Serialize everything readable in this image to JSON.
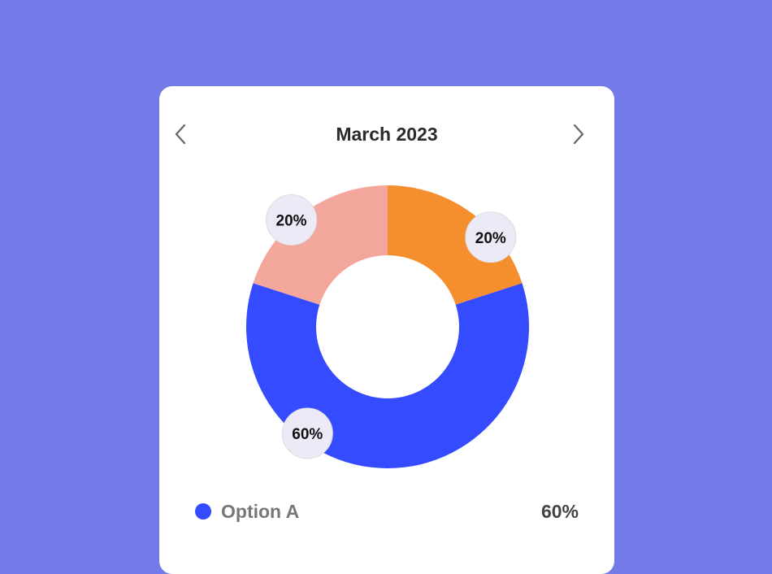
{
  "header": {
    "title": "March 2023",
    "prev_icon": "chevron-left-icon",
    "next_icon": "chevron-right-icon"
  },
  "colors": {
    "background": "#747AE8",
    "card": "#FFFFFF",
    "label_bubble": "#EBEAF6"
  },
  "chart_data": {
    "type": "pie",
    "variant": "donut",
    "slices": [
      {
        "label": "20%",
        "value": 20,
        "color": "#F58F2D"
      },
      {
        "label": "60%",
        "value": 60,
        "color": "#354BFF"
      },
      {
        "label": "20%",
        "value": 20,
        "color": "#F3A79C"
      }
    ]
  },
  "legend": [
    {
      "name": "Option A",
      "value": "60%",
      "color": "#354BFF"
    }
  ]
}
